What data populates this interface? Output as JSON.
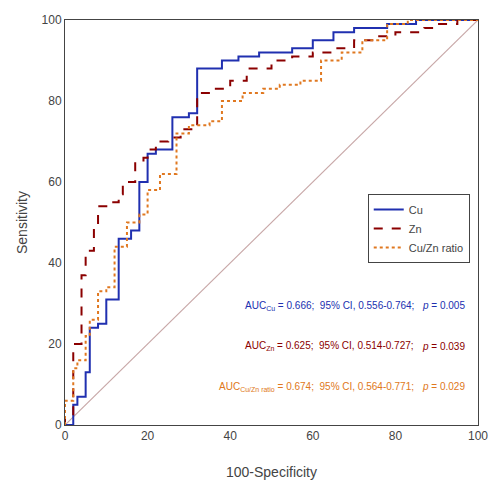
{
  "chart_data": {
    "type": "line",
    "xlabel": "100-Specificity",
    "ylabel": "Sensitivity",
    "xlim": [
      0,
      100
    ],
    "ylim": [
      0,
      100
    ],
    "xticks": [
      0,
      20,
      40,
      60,
      80,
      100
    ],
    "yticks": [
      0,
      20,
      40,
      60,
      80,
      100
    ],
    "grid": false,
    "legend": "lower right",
    "series": [
      {
        "color": "#c8a8a8",
        "line_style": "solid",
        "x": [
          0,
          100
        ],
        "values": [
          0,
          100
        ]
      },
      {
        "name": "Cu",
        "color": "#2030b0",
        "line_style": "solid",
        "x": [
          0,
          2,
          2,
          3,
          3,
          5,
          5,
          6,
          6,
          8,
          8,
          10,
          10,
          13,
          13,
          16,
          16,
          18,
          18,
          20,
          20,
          22,
          22,
          26,
          26,
          30,
          30,
          32,
          32,
          38,
          38,
          42,
          42,
          47,
          47,
          55,
          55,
          60,
          60,
          65,
          65,
          70,
          70,
          78,
          78,
          85,
          85,
          90,
          90,
          100,
          100
        ],
        "values": [
          0,
          0,
          5,
          5,
          7,
          7,
          13,
          13,
          24,
          24,
          25,
          25,
          31,
          31,
          46,
          46,
          48,
          48,
          60,
          60,
          67,
          67,
          68,
          68,
          76,
          76,
          77,
          77,
          88,
          88,
          90,
          90,
          91,
          91,
          92,
          92,
          93,
          93,
          95,
          95,
          97,
          97,
          98,
          98,
          99,
          99,
          100,
          100,
          100,
          100,
          100
        ]
      },
      {
        "name": "Zn",
        "color": "#8b0000",
        "line_style": "dashed",
        "x": [
          0,
          0,
          2,
          2,
          4,
          4,
          5,
          5,
          7,
          7,
          8,
          8,
          10,
          10,
          13,
          13,
          14,
          14,
          17,
          17,
          19,
          19,
          20,
          20,
          22,
          22,
          25,
          25,
          28,
          28,
          32,
          32,
          36,
          36,
          40,
          40,
          44,
          44,
          50,
          50,
          55,
          55,
          60,
          60,
          65,
          65,
          70,
          70,
          75,
          75,
          80,
          80,
          87,
          87,
          90,
          90,
          95,
          95,
          100
        ],
        "values": [
          0,
          2,
          2,
          20,
          20,
          37,
          37,
          43,
          43,
          49,
          49,
          54,
          54,
          55,
          55,
          57,
          57,
          60,
          60,
          65,
          65,
          66,
          66,
          68,
          68,
          70,
          70,
          71,
          71,
          73,
          73,
          82,
          82,
          83,
          83,
          85,
          85,
          88,
          88,
          90,
          90,
          91,
          91,
          92,
          92,
          93,
          93,
          95,
          95,
          96,
          96,
          97,
          97,
          98,
          98,
          99,
          99,
          100,
          100
        ]
      },
      {
        "name": "Cu/Zn ratio",
        "color": "#e07820",
        "line_style": "dotted",
        "x": [
          0,
          0,
          2,
          2,
          3,
          3,
          5,
          5,
          6,
          6,
          8,
          8,
          10,
          10,
          12,
          12,
          15,
          15,
          18,
          18,
          20,
          20,
          23,
          23,
          27,
          27,
          30,
          30,
          35,
          35,
          38,
          38,
          43,
          43,
          48,
          48,
          52,
          52,
          57,
          57,
          62,
          62,
          67,
          67,
          72,
          72,
          78,
          78,
          83,
          83,
          88,
          88,
          93,
          93,
          97,
          97,
          100
        ],
        "values": [
          0,
          6,
          6,
          14,
          14,
          16,
          16,
          22,
          22,
          26,
          26,
          33,
          33,
          34,
          34,
          44,
          44,
          50,
          50,
          52,
          52,
          58,
          58,
          62,
          62,
          72,
          72,
          74,
          74,
          75,
          75,
          80,
          80,
          82,
          82,
          83,
          83,
          84,
          84,
          85,
          85,
          90,
          90,
          92,
          92,
          95,
          95,
          99,
          99,
          100,
          100,
          100,
          100,
          100,
          100,
          100,
          100
        ]
      }
    ],
    "annotations": [
      {
        "color": "#2030b0",
        "text": "AUC",
        "subscript": "Cu",
        "detail": " = 0.666;  95% CI, 0.556-0.764;",
        "p_label": "p",
        "p_value": " = 0.005"
      },
      {
        "color": "#8b0000",
        "text": "AUC",
        "subscript": "Zn",
        "detail": " = 0.625;  95% CI, 0.514-0.727;",
        "p_label": "p",
        "p_value": " = 0.039"
      },
      {
        "color": "#e07820",
        "text": "AUC",
        "subscript": "Cu/Zn ratio",
        "detail": " = 0.674;  95% CI, 0.564-0.771;",
        "p_label": "p",
        "p_value": " = 0.029"
      }
    ]
  }
}
